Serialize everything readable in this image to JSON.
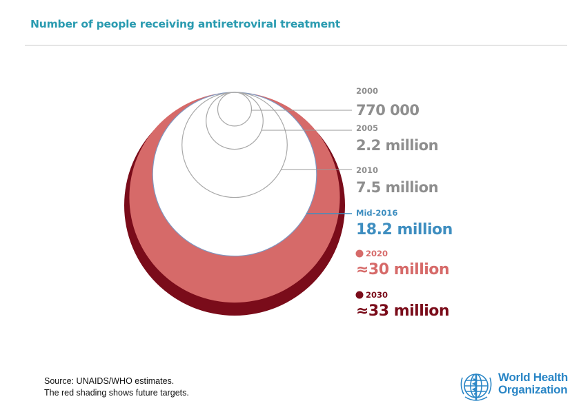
{
  "title": "Number of people receiving antiretroviral treatment",
  "source": {
    "line1": "Source: UNAIDS/WHO estimates.",
    "line2": "The red shading shows future targets."
  },
  "logo": {
    "line1": "World Health",
    "line2": "Organization"
  },
  "colors": {
    "title": "#2a9bb0",
    "grey_label": "#8e8e8e",
    "mid2016": "#3e8ec0",
    "target2020": "#d66a69",
    "target2030": "#7a0c1a",
    "who_blue": "#2a86c6"
  },
  "chart_data": {
    "type": "nested-bubble",
    "title": "Number of people receiving antiretroviral treatment",
    "unit": "people",
    "series": [
      {
        "year": "2000",
        "label": "770 000",
        "value": 770000
      },
      {
        "year": "2005",
        "label": "2.2 million",
        "value": 2200000
      },
      {
        "year": "2010",
        "label": "7.5 million",
        "value": 7500000
      },
      {
        "year": "Mid-2016",
        "label": "18.2 million",
        "value": 18200000
      },
      {
        "year": "2020",
        "label": "≈30 million",
        "value": 30000000,
        "target": true
      },
      {
        "year": "2030",
        "label": "≈33 million",
        "value": 33000000,
        "target": true
      }
    ]
  }
}
